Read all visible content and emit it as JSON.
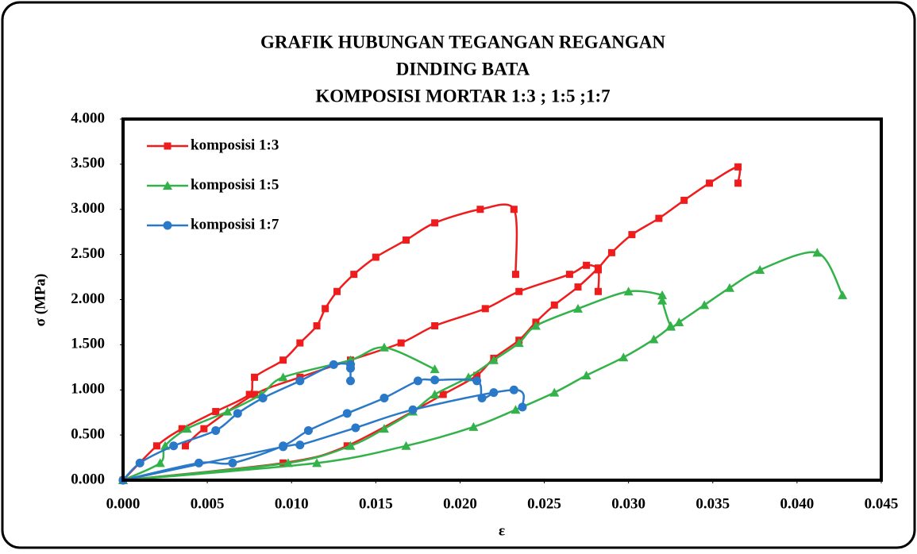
{
  "chart_data": {
    "type": "line",
    "title": [
      "GRAFIK  HUBUNGAN TEGANGAN REGANGAN",
      "DINDING BATA",
      "KOMPOSISI MORTAR 1:3 ; 1:5 ;1:7"
    ],
    "xlabel": "ε",
    "ylabel": "σ (MPa)",
    "xlim": [
      0,
      0.045
    ],
    "ylim": [
      0,
      4
    ],
    "xticks": [
      {
        "value": 0,
        "label": "0.000"
      },
      {
        "value": 0.005,
        "label": "0.005"
      },
      {
        "value": 0.01,
        "label": "0.010"
      },
      {
        "value": 0.015,
        "label": "0.015"
      },
      {
        "value": 0.02,
        "label": "0.020"
      },
      {
        "value": 0.025,
        "label": "0.025"
      },
      {
        "value": 0.03,
        "label": "0.030"
      },
      {
        "value": 0.035,
        "label": "0.035"
      },
      {
        "value": 0.04,
        "label": "0.040"
      },
      {
        "value": 0.045,
        "label": "0.045"
      }
    ],
    "yticks": [
      {
        "value": 0,
        "label": "0.000"
      },
      {
        "value": 0.5,
        "label": "0.500"
      },
      {
        "value": 1,
        "label": "1.000"
      },
      {
        "value": 1.5,
        "label": "1.500"
      },
      {
        "value": 2,
        "label": "2.000"
      },
      {
        "value": 2.5,
        "label": "2.500"
      },
      {
        "value": 3,
        "label": "3.000"
      },
      {
        "value": 3.5,
        "label": "3.500"
      },
      {
        "value": 4,
        "label": "4.000"
      }
    ],
    "legend": "upper left",
    "series": [
      {
        "name": "komposisi 1:3",
        "color": "#ee1c1c",
        "marker": "square",
        "x": [
          0,
          0.002,
          0.0035,
          0.0055,
          0.0075,
          0.0078,
          0.0095,
          0.0105,
          0.0115,
          0.012,
          0.0127,
          0.0137,
          0.015,
          0.0168,
          0.0185,
          0.0212,
          0.0232,
          0.0233,
          null,
          0.0037,
          0.0048,
          0.0078,
          0.0105,
          0.0135,
          0.0165,
          0.0185,
          0.0215,
          0.0235,
          0.0265,
          0.0275,
          0.0282,
          0.0282,
          null,
          0,
          0.0095,
          0.0133,
          0.019,
          0.021,
          0.022,
          0.0235,
          0.0245,
          0.0256,
          0.027,
          0.0282,
          0.029,
          0.0302,
          0.0318,
          0.0333,
          0.0348,
          0.0365,
          0.0365
        ],
        "values": [
          0,
          0.38,
          0.57,
          0.76,
          0.95,
          1.14,
          1.33,
          1.52,
          1.71,
          1.9,
          2.09,
          2.28,
          2.47,
          2.66,
          2.85,
          3.0,
          3.0,
          2.28,
          null,
          0.38,
          0.57,
          0.95,
          1.14,
          1.33,
          1.52,
          1.71,
          1.9,
          2.09,
          2.28,
          2.38,
          2.33,
          2.09,
          null,
          0,
          0.19,
          0.38,
          0.95,
          1.16,
          1.35,
          1.55,
          1.75,
          1.94,
          2.14,
          2.35,
          2.52,
          2.72,
          2.9,
          3.1,
          3.29,
          3.47,
          3.29
        ]
      },
      {
        "name": "komposisi 1:5",
        "color": "#33b24a",
        "marker": "triangle",
        "x": [
          0,
          0.0022,
          0.0025,
          0.0038,
          0.0062,
          0.0082,
          0.0095,
          0.0135,
          0.0155,
          0.0185,
          null,
          0,
          0.0098,
          0.0135,
          0.0155,
          0.0172,
          0.0185,
          0.0205,
          0.022,
          0.0235,
          0.0245,
          0.027,
          0.03,
          0.032,
          0.032,
          0.0325,
          0.033,
          0.0345,
          0.036,
          0.0378,
          0.0412,
          0.0427,
          null,
          0,
          0.0115,
          0.0168,
          0.0208,
          0.0233,
          0.0256,
          0.0275,
          0.0297,
          0.0315,
          0.0325
        ],
        "values": [
          0,
          0.19,
          0.38,
          0.57,
          0.76,
          0.95,
          1.14,
          1.33,
          1.47,
          1.23,
          null,
          0,
          0.19,
          0.38,
          0.57,
          0.76,
          0.95,
          1.14,
          1.33,
          1.52,
          1.71,
          1.9,
          2.09,
          2.05,
          1.99,
          1.71,
          1.75,
          1.94,
          2.13,
          2.33,
          2.52,
          2.05,
          null,
          0,
          0.19,
          0.38,
          0.59,
          0.78,
          0.97,
          1.16,
          1.36,
          1.56,
          1.7
        ]
      },
      {
        "name": "komposisi 1:7",
        "color": "#2a78c8",
        "marker": "circle",
        "x": [
          0,
          0.001,
          0.003,
          0.0055,
          0.0068,
          0.0083,
          0.0105,
          0.0125,
          0.0135,
          0.0135,
          0.0135,
          null,
          0,
          0.0045,
          0.0065,
          0.0095,
          0.011,
          0.0133,
          0.0155,
          0.0175,
          0.0185,
          0.021,
          0.0213,
          0.022,
          null,
          0,
          0.0095,
          0.0105,
          0.0138,
          0.0172,
          0.0232,
          0.0237
        ],
        "values": [
          0,
          0.19,
          0.38,
          0.55,
          0.74,
          0.91,
          1.1,
          1.28,
          1.28,
          1.24,
          1.1,
          null,
          0,
          0.19,
          0.19,
          0.38,
          0.55,
          0.74,
          0.91,
          1.1,
          1.11,
          1.1,
          0.91,
          0.97,
          null,
          0,
          0.37,
          0.39,
          0.58,
          0.78,
          1.0,
          0.81
        ]
      }
    ]
  }
}
